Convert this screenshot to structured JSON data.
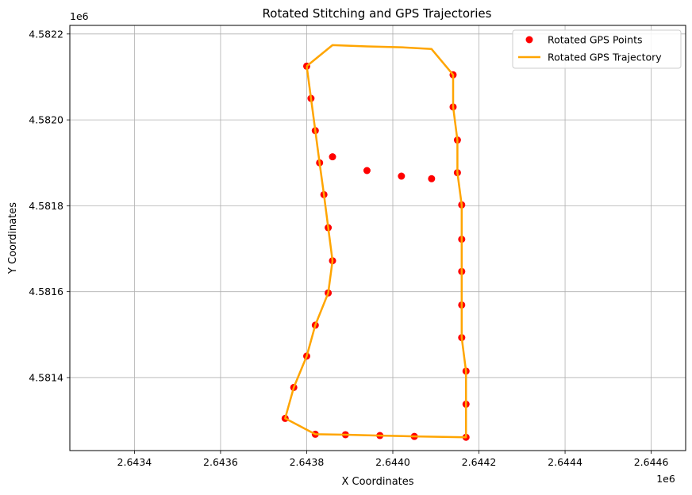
{
  "chart_data": {
    "type": "scatter",
    "title": "Rotated Stitching and GPS Trajectories",
    "xlabel": "X Coordinates",
    "ylabel": "Y Coordinates",
    "x_offset_label": "1e6",
    "y_offset_label": "1e6",
    "xlim": [
      2.64325,
      2.64468
    ],
    "ylim": [
      4.58123,
      4.58222
    ],
    "xticks": [
      2.6434,
      2.6436,
      2.6438,
      2.644,
      2.6442,
      2.6444,
      2.6446
    ],
    "xtick_labels": [
      "2.6434",
      "2.6436",
      "2.6438",
      "2.6440",
      "2.6442",
      "2.6444",
      "2.6446"
    ],
    "yticks": [
      4.5814,
      4.5816,
      4.5818,
      4.582,
      4.5822
    ],
    "ytick_labels": [
      "4.5814",
      "4.5816",
      "4.5818",
      "4.5820",
      "4.5822"
    ],
    "grid": true,
    "legend_position": "top-right",
    "colors": {
      "points": "#ff0000",
      "trajectory": "#ffa500"
    },
    "series": [
      {
        "name": "Rotated GPS Points",
        "kind": "scatter",
        "x": [
          2.64386,
          2.64394,
          2.64402,
          2.64409,
          2.64414,
          2.64414,
          2.64415,
          2.64415,
          2.64416,
          2.64416,
          2.64416,
          2.64416,
          2.64416,
          2.64417,
          2.64417,
          2.64417,
          2.64405,
          2.64397,
          2.64389,
          2.64382,
          2.64375,
          2.64377,
          2.6438,
          2.64382,
          2.64385,
          2.64386,
          2.64385,
          2.64384,
          2.64383,
          2.64382,
          2.64381,
          2.6438
        ],
        "y": [
          4.581914,
          4.581882,
          4.581869,
          4.581863,
          4.582105,
          4.58203,
          4.581953,
          4.581877,
          4.581802,
          4.581722,
          4.581647,
          4.581569,
          4.581493,
          4.581415,
          4.581338,
          4.581261,
          4.581263,
          4.581265,
          4.581267,
          4.581268,
          4.581305,
          4.581377,
          4.58145,
          4.581522,
          4.581597,
          4.581672,
          4.581749,
          4.581826,
          4.5819,
          4.581975,
          4.58205,
          4.582125
        ]
      },
      {
        "name": "Rotated GPS Trajectory",
        "kind": "line",
        "x": [
          2.6438,
          2.64386,
          2.64394,
          2.64402,
          2.64409,
          2.64414,
          2.64414,
          2.64415,
          2.64415,
          2.64416,
          2.64416,
          2.64416,
          2.64416,
          2.64416,
          2.64417,
          2.64417,
          2.64417,
          2.64405,
          2.64397,
          2.64389,
          2.64382,
          2.64375,
          2.64377,
          2.6438,
          2.64382,
          2.64385,
          2.64386,
          2.64385,
          2.64384,
          2.64383,
          2.64382,
          2.64381,
          2.6438
        ],
        "y": [
          4.582125,
          4.582174,
          4.582171,
          4.582169,
          4.582165,
          4.582105,
          4.58203,
          4.581953,
          4.581877,
          4.581802,
          4.581722,
          4.581647,
          4.581569,
          4.581493,
          4.581415,
          4.581338,
          4.581261,
          4.581263,
          4.581265,
          4.581267,
          4.581268,
          4.581305,
          4.581377,
          4.58145,
          4.581522,
          4.581597,
          4.581672,
          4.581749,
          4.581826,
          4.5819,
          4.581975,
          4.58205,
          4.582125
        ]
      }
    ]
  }
}
